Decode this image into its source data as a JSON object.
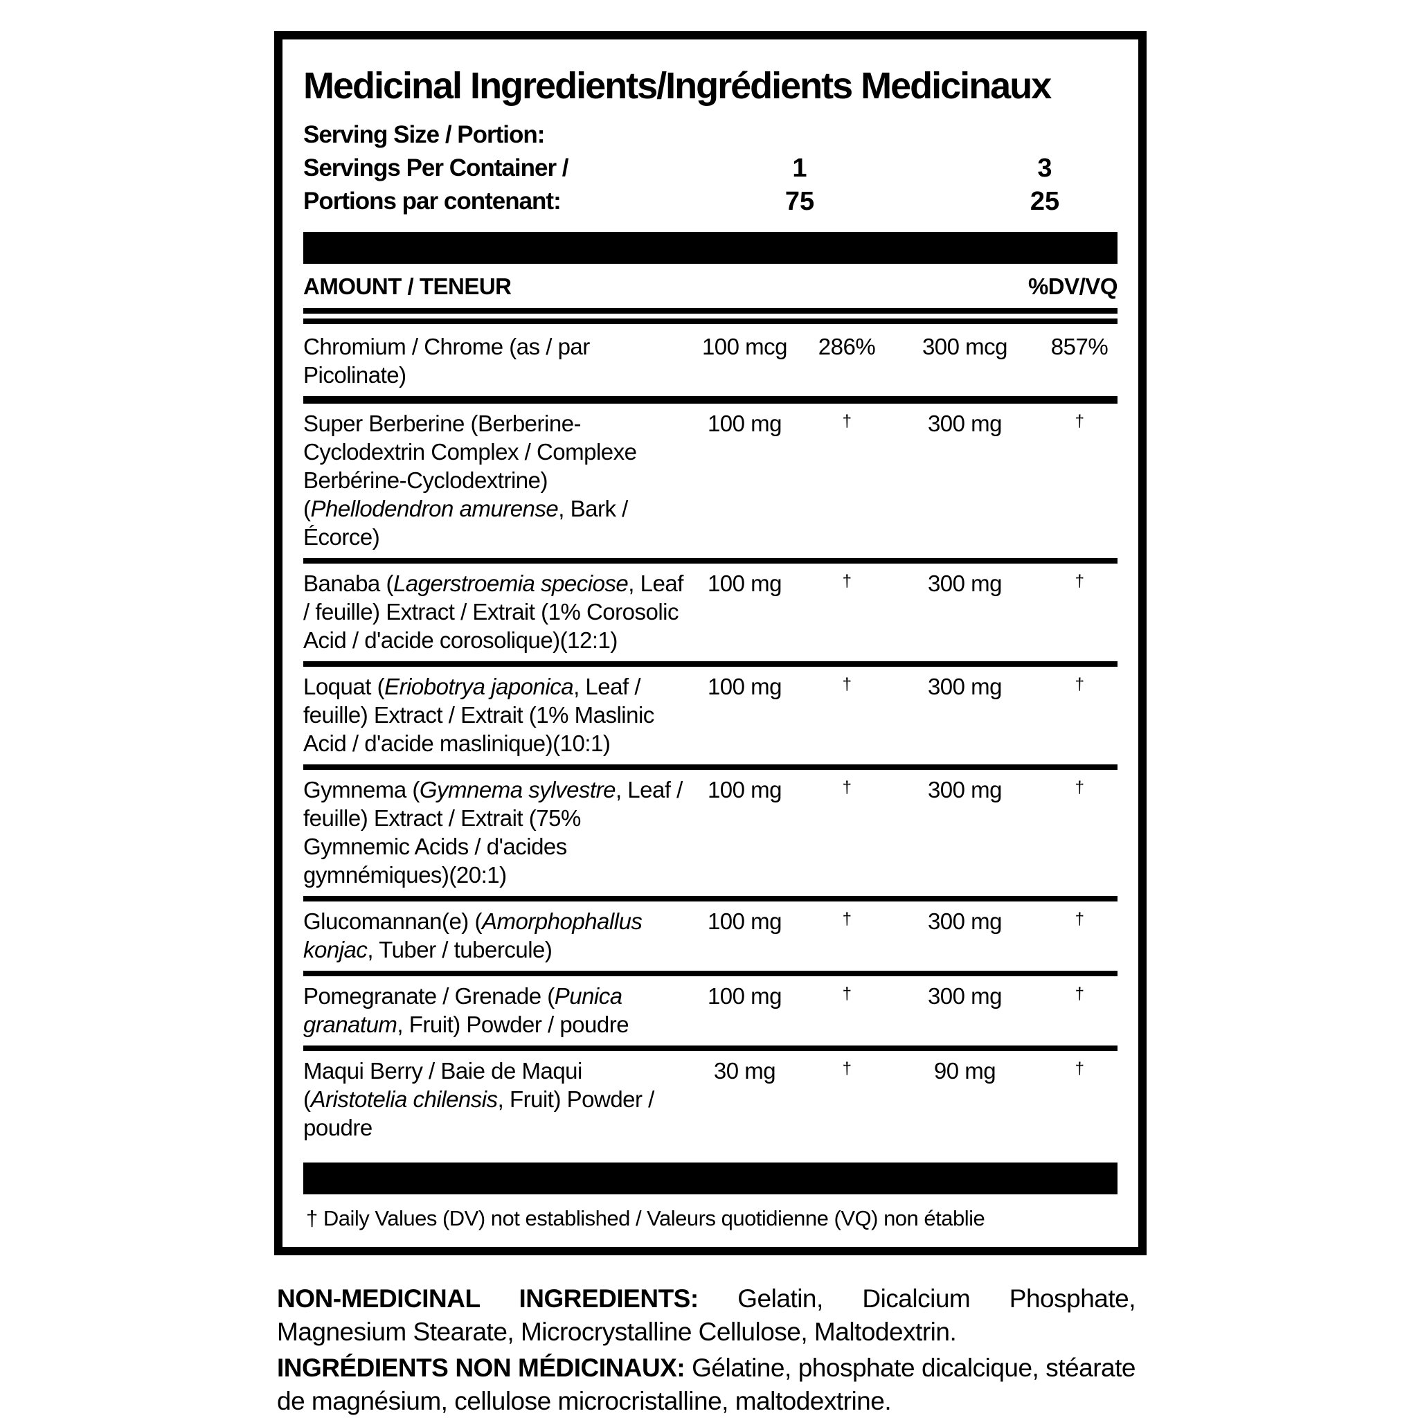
{
  "panel": {
    "title": "Medicinal Ingredients/Ingrédients Medicinaux",
    "serving": {
      "size_label": "Serving Size / Portion:",
      "per_container_label_en": "Servings Per Container /",
      "per_container_label_fr": "Portions par contenant:",
      "columns": [
        {
          "size": "1",
          "servings": "75"
        },
        {
          "size": "3",
          "servings": "25"
        }
      ]
    },
    "header": {
      "amount_label": "AMOUNT / TENEUR",
      "dv_label": "%DV/VQ"
    },
    "rows": [
      {
        "name": [
          {
            "t": "Chromium / Chrome (as / par Picolinate)"
          }
        ],
        "amount1": "100 mcg",
        "dv1": "286%",
        "amount2": "300 mcg",
        "dv2": "857%"
      },
      {
        "name": [
          {
            "t": "Super Berberine (Berberine-Cyclodextrin Complex / Complexe Berbérine-Cyclodextrine) ("
          },
          {
            "t": "Phellodendron amurense",
            "i": true
          },
          {
            "t": ", Bark / Écorce)"
          }
        ],
        "amount1": "100 mg",
        "dv1": "†",
        "amount2": "300 mg",
        "dv2": "†"
      },
      {
        "name": [
          {
            "t": "Banaba ("
          },
          {
            "t": "Lagerstroemia speciose",
            "i": true
          },
          {
            "t": ", Leaf / feuille) Extract / Extrait (1% Corosolic Acid / d'acide corosolique)(12:1)"
          }
        ],
        "amount1": "100 mg",
        "dv1": "†",
        "amount2": "300 mg",
        "dv2": "†"
      },
      {
        "name": [
          {
            "t": "Loquat ("
          },
          {
            "t": "Eriobotrya japonica",
            "i": true
          },
          {
            "t": ", Leaf / feuille) Extract / Extrait (1% Maslinic Acid / d'acide maslinique)(10:1)"
          }
        ],
        "amount1": "100 mg",
        "dv1": "†",
        "amount2": "300 mg",
        "dv2": "†"
      },
      {
        "name": [
          {
            "t": "Gymnema ("
          },
          {
            "t": "Gymnema sylvestre",
            "i": true
          },
          {
            "t": ", Leaf / feuille) Extract / Extrait (75% Gymnemic Acids / d'acides gymnémiques)(20:1)"
          }
        ],
        "amount1": "100 mg",
        "dv1": "†",
        "amount2": "300 mg",
        "dv2": "†"
      },
      {
        "name": [
          {
            "t": "Glucomannan(e) ("
          },
          {
            "t": "Amorphophallus konjac",
            "i": true
          },
          {
            "t": ", Tuber / tubercule)"
          }
        ],
        "amount1": "100 mg",
        "dv1": "†",
        "amount2": "300 mg",
        "dv2": "†"
      },
      {
        "name": [
          {
            "t": "Pomegranate / Grenade ("
          },
          {
            "t": "Punica granatum",
            "i": true
          },
          {
            "t": ", Fruit) Powder / poudre"
          }
        ],
        "amount1": "100 mg",
        "dv1": "†",
        "amount2": "300 mg",
        "dv2": "†"
      },
      {
        "name": [
          {
            "t": "Maqui Berry / Baie de Maqui ("
          },
          {
            "t": "Aristotelia chilensis",
            "i": true
          },
          {
            "t": ", Fruit) Powder / poudre"
          }
        ],
        "amount1": "30 mg",
        "dv1": "†",
        "amount2": "90 mg",
        "dv2": "†"
      }
    ],
    "footnote": "† Daily Values (DV) not established / Valeurs quotidienne (VQ) non établie"
  },
  "non_medicinal": {
    "en_label": "NON-MEDICINAL INGREDIENTS:",
    "en_text": " Gelatin, Dicalcium Phosphate, Magnesium Stearate, Microcrystalline Cellulose, Maltodextrin.",
    "fr_label": "INGRÉDIENTS NON MÉDICINAUX:",
    "fr_text": " Gélatine, phosphate dicalcique, stéarate de magnésium, cellulose microcristalline, maltodextrine."
  },
  "colors": {
    "ink": "#000000",
    "background": "#ffffff"
  }
}
